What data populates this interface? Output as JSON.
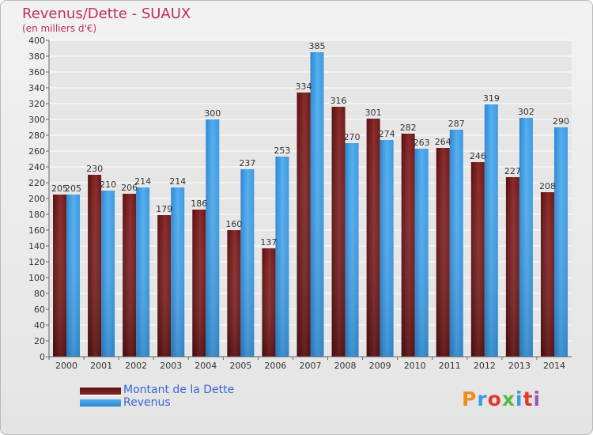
{
  "title": "Revenus/Dette - SUAUX",
  "subtitle": "(en milliers d'€)",
  "logo": {
    "text": "Proxiti",
    "colors": [
      "#f28c1d",
      "#3b9ae0",
      "#e23a2a",
      "#58b848",
      "#3b9ae0",
      "#e23a2a",
      "#9b59b6"
    ]
  },
  "colors": {
    "debt": "#7b1d1d",
    "revenue": "#3d9be0",
    "title": "#c0305a",
    "legend_text": "#3a64d8"
  },
  "chart_data": {
    "type": "bar",
    "title": "Revenus/Dette - SUAUX",
    "subtitle": "(en milliers d'€)",
    "categories": [
      "2000",
      "2001",
      "2002",
      "2003",
      "2004",
      "2005",
      "2006",
      "2007",
      "2008",
      "2009",
      "2010",
      "2011",
      "2012",
      "2013",
      "2014"
    ],
    "series": [
      {
        "name": "Montant de la Dette",
        "values": [
          205,
          230,
          206,
          179,
          186,
          160,
          137,
          334,
          316,
          301,
          282,
          264,
          246,
          227,
          208
        ]
      },
      {
        "name": "Revenus",
        "values": [
          205,
          210,
          214,
          214,
          300,
          237,
          253,
          385,
          270,
          274,
          263,
          287,
          319,
          302,
          290
        ]
      }
    ],
    "ylim": [
      0,
      400
    ],
    "yticks": [
      0,
      20,
      40,
      60,
      80,
      100,
      120,
      140,
      160,
      180,
      200,
      220,
      240,
      260,
      280,
      300,
      320,
      340,
      360,
      380,
      400
    ],
    "grid": true,
    "legend_position": "bottom-left"
  }
}
